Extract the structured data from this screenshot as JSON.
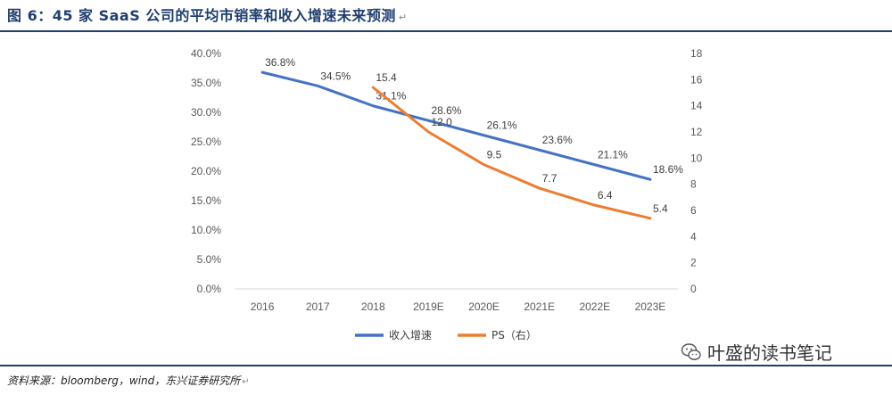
{
  "title": "图 6：45 家 SaaS 公司的平均市销率和收入增速未来预测",
  "paragraph_mark": "↵",
  "source": "资料来源：bloomberg，wind，东兴证券研究所",
  "watermark": "叶盛的读书笔记",
  "colors": {
    "blue": "#4472c4",
    "orange": "#ed7d31",
    "rule": "#1f3f6e",
    "axis": "#d9d9d9"
  },
  "chart_data": {
    "type": "line",
    "categories": [
      "2016",
      "2017",
      "2018",
      "2019E",
      "2020E",
      "2021E",
      "2022E",
      "2023E"
    ],
    "left_axis": {
      "min": 0,
      "max": 40,
      "step": 5,
      "ticks": [
        "0.0%",
        "5.0%",
        "10.0%",
        "15.0%",
        "20.0%",
        "25.0%",
        "30.0%",
        "35.0%",
        "40.0%"
      ]
    },
    "right_axis": {
      "min": 0,
      "max": 18,
      "step": 2,
      "ticks": [
        "0",
        "2",
        "4",
        "6",
        "8",
        "10",
        "12",
        "14",
        "16",
        "18"
      ]
    },
    "series": [
      {
        "name": "收入增速",
        "axis": "left",
        "color": "#4472c4",
        "values": [
          36.8,
          34.5,
          31.1,
          28.6,
          26.1,
          23.6,
          21.1,
          18.6
        ],
        "labels": [
          "36.8%",
          "34.5%",
          "31.1%",
          "28.6%",
          "26.1%",
          "23.6%",
          "21.1%",
          "18.6%"
        ]
      },
      {
        "name": "PS（右）",
        "axis": "right",
        "color": "#ed7d31",
        "values": [
          null,
          null,
          15.4,
          12.0,
          9.5,
          7.7,
          6.4,
          5.4
        ],
        "labels": [
          "",
          "",
          "15.4",
          "12.0",
          "9.5",
          "7.7",
          "6.4",
          "5.4"
        ]
      }
    ],
    "legend_position": "bottom"
  }
}
